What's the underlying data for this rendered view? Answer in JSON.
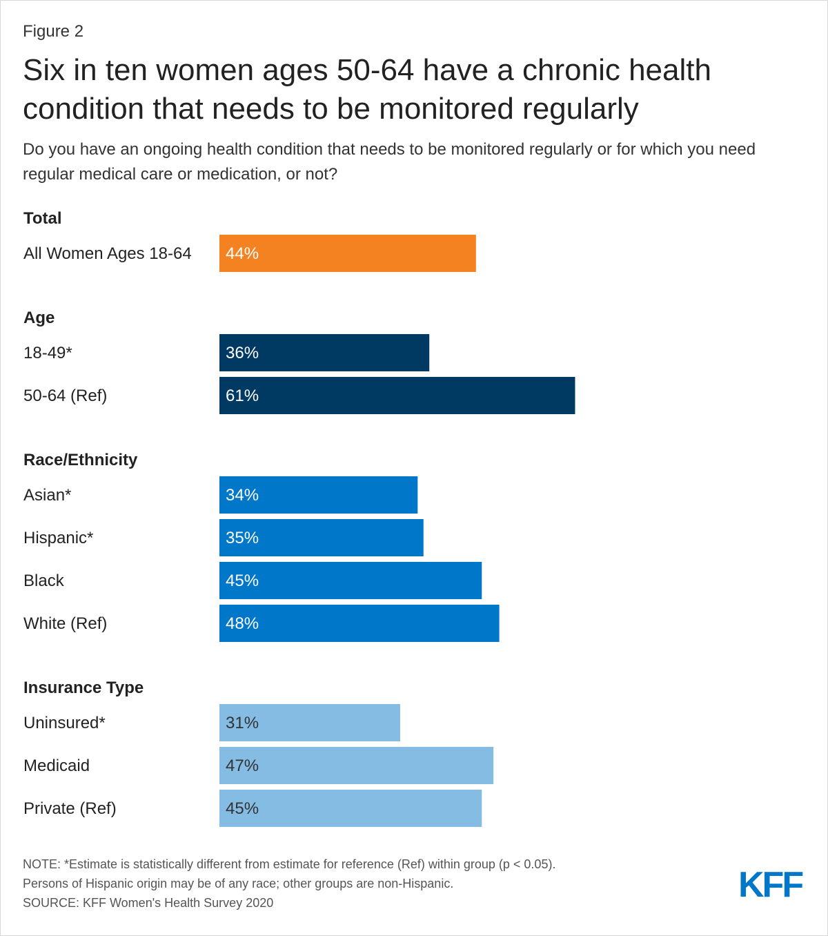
{
  "figure_label": "Figure 2",
  "title": "Six in ten women ages 50-64 have a chronic health condition that needs to be monitored regularly",
  "subtitle": "Do you have an ongoing health condition that needs to be monitored regularly or for which you need regular medical care or medication, or not?",
  "chart_data": {
    "type": "bar",
    "orientation": "horizontal",
    "value_suffix": "%",
    "groups": [
      {
        "heading": "Total",
        "color": "#f58220",
        "label_color": "#ffffff",
        "bars": [
          {
            "label": "All Women Ages 18-64",
            "value": 44
          }
        ]
      },
      {
        "heading": "Age",
        "color": "#003a63",
        "label_color": "#ffffff",
        "bars": [
          {
            "label": "18-49*",
            "value": 36
          },
          {
            "label": "50-64 (Ref)",
            "value": 61
          }
        ]
      },
      {
        "heading": "Race/Ethnicity",
        "color": "#0077c8",
        "label_color": "#ffffff",
        "bars": [
          {
            "label": "Asian*",
            "value": 34
          },
          {
            "label": "Hispanic*",
            "value": 35
          },
          {
            "label": "Black",
            "value": 45
          },
          {
            "label": "White (Ref)",
            "value": 48
          }
        ]
      },
      {
        "heading": "Insurance Type",
        "color": "#84bce4",
        "label_color": "#333333",
        "bars": [
          {
            "label": "Uninsured*",
            "value": 31
          },
          {
            "label": "Medicaid",
            "value": 47
          },
          {
            "label": "Private (Ref)",
            "value": 45
          }
        ]
      }
    ],
    "xlim": [
      0,
      100
    ],
    "grid": false,
    "legend": "none"
  },
  "notes": {
    "line1": "NOTE: *Estimate is statistically different from estimate for reference (Ref) within group (p < 0.05).",
    "line2": "Persons of Hispanic origin may be of any race; other groups are non-Hispanic.",
    "source": "SOURCE: KFF Women's Health Survey 2020"
  },
  "logo": {
    "text": "KFF",
    "color": "#0077c8"
  }
}
